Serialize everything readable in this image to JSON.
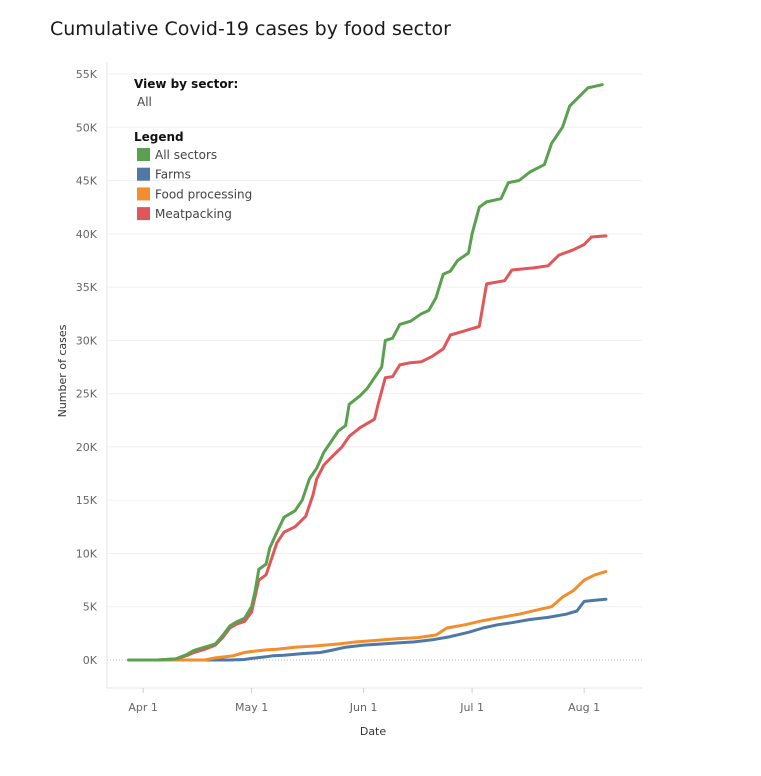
{
  "chart_data": {
    "type": "line",
    "title": "Cumulative Covid-19 cases by food sector",
    "xlabel": "Date",
    "ylabel": "Number of cases",
    "ylim": [
      0,
      55000
    ],
    "xlim": [
      "2020-03-22",
      "2020-08-17"
    ],
    "x_ticks": [
      {
        "date": "2020-04-01",
        "label": "Apr 1"
      },
      {
        "date": "2020-05-01",
        "label": "May 1"
      },
      {
        "date": "2020-06-01",
        "label": "Jun 1"
      },
      {
        "date": "2020-07-01",
        "label": "Jul 1"
      },
      {
        "date": "2020-08-01",
        "label": "Aug 1"
      }
    ],
    "y_ticks": [
      {
        "value": 0,
        "label": "0K"
      },
      {
        "value": 5000,
        "label": "5K"
      },
      {
        "value": 10000,
        "label": "10K"
      },
      {
        "value": 15000,
        "label": "15K"
      },
      {
        "value": 20000,
        "label": "20K"
      },
      {
        "value": 25000,
        "label": "25K"
      },
      {
        "value": 30000,
        "label": "30K"
      },
      {
        "value": 35000,
        "label": "35K"
      },
      {
        "value": 40000,
        "label": "40K"
      },
      {
        "value": 45000,
        "label": "45K"
      },
      {
        "value": 50000,
        "label": "50K"
      },
      {
        "value": 55000,
        "label": "55K"
      }
    ],
    "grid": true,
    "legend_position": "top-left",
    "filter": {
      "heading": "View by sector:",
      "value": "All"
    },
    "legend_heading": "Legend",
    "series": [
      {
        "name": "All sectors",
        "color": "#59a14f",
        "points": [
          [
            "2020-03-28",
            0
          ],
          [
            "2020-04-05",
            0
          ],
          [
            "2020-04-10",
            100
          ],
          [
            "2020-04-13",
            500
          ],
          [
            "2020-04-15",
            900
          ],
          [
            "2020-04-18",
            1200
          ],
          [
            "2020-04-21",
            1500
          ],
          [
            "2020-04-23",
            2300
          ],
          [
            "2020-04-25",
            3200
          ],
          [
            "2020-04-27",
            3600
          ],
          [
            "2020-04-29",
            3900
          ],
          [
            "2020-05-01",
            5000
          ],
          [
            "2020-05-02",
            6500
          ],
          [
            "2020-05-03",
            8500
          ],
          [
            "2020-05-05",
            9000
          ],
          [
            "2020-05-06",
            10500
          ],
          [
            "2020-05-08",
            12000
          ],
          [
            "2020-05-10",
            13400
          ],
          [
            "2020-05-13",
            14000
          ],
          [
            "2020-05-15",
            15000
          ],
          [
            "2020-05-17",
            17000
          ],
          [
            "2020-05-19",
            18000
          ],
          [
            "2020-05-21",
            19500
          ],
          [
            "2020-05-23",
            20500
          ],
          [
            "2020-05-25",
            21500
          ],
          [
            "2020-05-27",
            22000
          ],
          [
            "2020-05-28",
            24000
          ],
          [
            "2020-05-31",
            24800
          ],
          [
            "2020-06-02",
            25500
          ],
          [
            "2020-06-04",
            26500
          ],
          [
            "2020-06-06",
            27500
          ],
          [
            "2020-06-07",
            30000
          ],
          [
            "2020-06-09",
            30200
          ],
          [
            "2020-06-11",
            31500
          ],
          [
            "2020-06-14",
            31800
          ],
          [
            "2020-06-17",
            32500
          ],
          [
            "2020-06-19",
            32800
          ],
          [
            "2020-06-21",
            34000
          ],
          [
            "2020-06-23",
            36200
          ],
          [
            "2020-06-25",
            36500
          ],
          [
            "2020-06-27",
            37500
          ],
          [
            "2020-06-30",
            38200
          ],
          [
            "2020-07-01",
            40000
          ],
          [
            "2020-07-03",
            42500
          ],
          [
            "2020-07-05",
            43000
          ],
          [
            "2020-07-09",
            43300
          ],
          [
            "2020-07-11",
            44800
          ],
          [
            "2020-07-14",
            45000
          ],
          [
            "2020-07-17",
            45800
          ],
          [
            "2020-07-21",
            46500
          ],
          [
            "2020-07-23",
            48500
          ],
          [
            "2020-07-26",
            50000
          ],
          [
            "2020-07-28",
            52000
          ],
          [
            "2020-07-31",
            53000
          ],
          [
            "2020-08-02",
            53700
          ],
          [
            "2020-08-06",
            54000
          ]
        ]
      },
      {
        "name": "Farms",
        "color": "#4e79a7",
        "points": [
          [
            "2020-03-28",
            0
          ],
          [
            "2020-04-25",
            0
          ],
          [
            "2020-04-29",
            50
          ],
          [
            "2020-05-01",
            150
          ],
          [
            "2020-05-05",
            300
          ],
          [
            "2020-05-07",
            400
          ],
          [
            "2020-05-10",
            450
          ],
          [
            "2020-05-15",
            600
          ],
          [
            "2020-05-20",
            700
          ],
          [
            "2020-05-23",
            900
          ],
          [
            "2020-05-27",
            1200
          ],
          [
            "2020-06-01",
            1400
          ],
          [
            "2020-06-06",
            1500
          ],
          [
            "2020-06-10",
            1600
          ],
          [
            "2020-06-15",
            1700
          ],
          [
            "2020-06-20",
            1900
          ],
          [
            "2020-06-25",
            2200
          ],
          [
            "2020-06-30",
            2600
          ],
          [
            "2020-07-04",
            3000
          ],
          [
            "2020-07-08",
            3300
          ],
          [
            "2020-07-12",
            3500
          ],
          [
            "2020-07-17",
            3800
          ],
          [
            "2020-07-22",
            4000
          ],
          [
            "2020-07-27",
            4300
          ],
          [
            "2020-07-30",
            4600
          ],
          [
            "2020-08-01",
            5500
          ],
          [
            "2020-08-04",
            5600
          ],
          [
            "2020-08-07",
            5700
          ]
        ]
      },
      {
        "name": "Food processing",
        "color": "#f28e2b",
        "points": [
          [
            "2020-03-28",
            0
          ],
          [
            "2020-04-18",
            0
          ],
          [
            "2020-04-21",
            200
          ],
          [
            "2020-04-26",
            400
          ],
          [
            "2020-04-29",
            700
          ],
          [
            "2020-05-01",
            800
          ],
          [
            "2020-05-05",
            950
          ],
          [
            "2020-05-08",
            1000
          ],
          [
            "2020-05-13",
            1200
          ],
          [
            "2020-05-18",
            1300
          ],
          [
            "2020-05-25",
            1500
          ],
          [
            "2020-05-30",
            1700
          ],
          [
            "2020-06-05",
            1850
          ],
          [
            "2020-06-10",
            2000
          ],
          [
            "2020-06-16",
            2100
          ],
          [
            "2020-06-21",
            2350
          ],
          [
            "2020-06-24",
            3000
          ],
          [
            "2020-06-29",
            3300
          ],
          [
            "2020-07-04",
            3700
          ],
          [
            "2020-07-09",
            4000
          ],
          [
            "2020-07-14",
            4300
          ],
          [
            "2020-07-19",
            4700
          ],
          [
            "2020-07-23",
            5000
          ],
          [
            "2020-07-26",
            5900
          ],
          [
            "2020-07-29",
            6500
          ],
          [
            "2020-08-01",
            7500
          ],
          [
            "2020-08-04",
            8000
          ],
          [
            "2020-08-07",
            8300
          ]
        ]
      },
      {
        "name": "Meatpacking",
        "color": "#e15759",
        "points": [
          [
            "2020-03-28",
            0
          ],
          [
            "2020-04-05",
            0
          ],
          [
            "2020-04-10",
            100
          ],
          [
            "2020-04-13",
            400
          ],
          [
            "2020-04-15",
            700
          ],
          [
            "2020-04-18",
            1000
          ],
          [
            "2020-04-21",
            1400
          ],
          [
            "2020-04-23",
            2100
          ],
          [
            "2020-04-25",
            3000
          ],
          [
            "2020-04-27",
            3400
          ],
          [
            "2020-04-29",
            3600
          ],
          [
            "2020-05-01",
            4500
          ],
          [
            "2020-05-03",
            7500
          ],
          [
            "2020-05-05",
            8000
          ],
          [
            "2020-05-06",
            9000
          ],
          [
            "2020-05-08",
            11000
          ],
          [
            "2020-05-10",
            12000
          ],
          [
            "2020-05-13",
            12500
          ],
          [
            "2020-05-16",
            13500
          ],
          [
            "2020-05-18",
            15500
          ],
          [
            "2020-05-19",
            17000
          ],
          [
            "2020-05-21",
            18300
          ],
          [
            "2020-05-23",
            19000
          ],
          [
            "2020-05-26",
            20000
          ],
          [
            "2020-05-28",
            21000
          ],
          [
            "2020-05-31",
            21800
          ],
          [
            "2020-06-04",
            22600
          ],
          [
            "2020-06-05",
            24000
          ],
          [
            "2020-06-07",
            26500
          ],
          [
            "2020-06-09",
            26600
          ],
          [
            "2020-06-11",
            27700
          ],
          [
            "2020-06-14",
            27900
          ],
          [
            "2020-06-17",
            28000
          ],
          [
            "2020-06-20",
            28500
          ],
          [
            "2020-06-23",
            29200
          ],
          [
            "2020-06-25",
            30500
          ],
          [
            "2020-06-27",
            30700
          ],
          [
            "2020-06-30",
            31000
          ],
          [
            "2020-07-03",
            31300
          ],
          [
            "2020-07-05",
            35300
          ],
          [
            "2020-07-10",
            35600
          ],
          [
            "2020-07-12",
            36600
          ],
          [
            "2020-07-18",
            36800
          ],
          [
            "2020-07-22",
            37000
          ],
          [
            "2020-07-25",
            38000
          ],
          [
            "2020-07-29",
            38500
          ],
          [
            "2020-08-01",
            39000
          ],
          [
            "2020-08-03",
            39700
          ],
          [
            "2020-08-07",
            39800
          ]
        ]
      }
    ]
  }
}
